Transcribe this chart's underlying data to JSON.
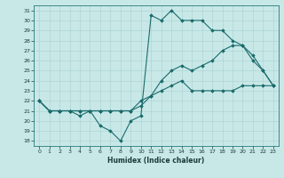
{
  "xlabel": "Humidex (Indice chaleur)",
  "bg_color": "#c8e8e8",
  "line_color": "#1a6b6b",
  "grid_color": "#a8d0d0",
  "xlim": [
    -0.5,
    23.5
  ],
  "ylim": [
    17.5,
    31.5
  ],
  "xticks": [
    0,
    1,
    2,
    3,
    4,
    5,
    6,
    7,
    8,
    9,
    10,
    11,
    12,
    13,
    14,
    15,
    16,
    17,
    18,
    19,
    20,
    21,
    22,
    23
  ],
  "yticks": [
    18,
    19,
    20,
    21,
    22,
    23,
    24,
    25,
    26,
    27,
    28,
    29,
    30,
    31
  ],
  "series": [
    {
      "x": [
        0,
        1,
        2,
        3,
        4,
        5,
        6,
        7,
        8,
        9,
        10,
        11,
        12,
        13,
        14,
        15,
        16,
        17,
        18,
        19,
        20,
        21,
        22,
        23
      ],
      "y": [
        22,
        21,
        21,
        21,
        20.5,
        21,
        19.5,
        19,
        18,
        20,
        20.5,
        30.5,
        30,
        31,
        30,
        30,
        30,
        29,
        29,
        28,
        27.5,
        26,
        25,
        23.5
      ]
    },
    {
      "x": [
        0,
        1,
        2,
        3,
        4,
        5,
        6,
        7,
        8,
        9,
        10,
        11,
        12,
        13,
        14,
        15,
        16,
        17,
        18,
        19,
        20,
        21,
        22,
        23
      ],
      "y": [
        22,
        21,
        21,
        21,
        21,
        21,
        21,
        21,
        21,
        21,
        22,
        22.5,
        23,
        23.5,
        24,
        23,
        23,
        23,
        23,
        23,
        23.5,
        23.5,
        23.5,
        23.5
      ]
    },
    {
      "x": [
        0,
        1,
        2,
        3,
        4,
        5,
        6,
        7,
        8,
        9,
        10,
        11,
        12,
        13,
        14,
        15,
        16,
        17,
        18,
        19,
        20,
        21,
        22,
        23
      ],
      "y": [
        22,
        21,
        21,
        21,
        21,
        21,
        21,
        21,
        21,
        21,
        21.5,
        22.5,
        24,
        25,
        25.5,
        25,
        25.5,
        26,
        27,
        27.5,
        27.5,
        26.5,
        25,
        23.5
      ]
    }
  ]
}
